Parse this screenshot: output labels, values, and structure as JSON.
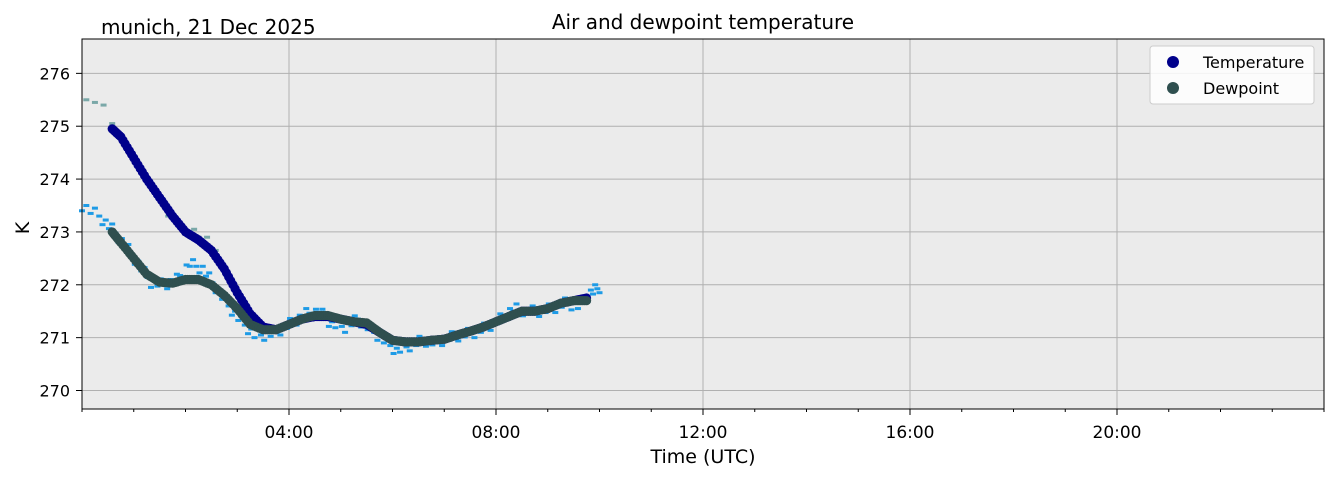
{
  "header": {
    "location_date": "munich, 21 Dec 2025",
    "title": "Air and dewpoint temperature"
  },
  "chart_data": {
    "type": "scatter",
    "title": "Air and dewpoint temperature",
    "xlabel": "Time (UTC)",
    "ylabel": "K",
    "xlim": [
      "00:00",
      "24:00"
    ],
    "ylim": [
      269.65,
      276.65
    ],
    "x_ticks": [
      "04:00",
      "08:00",
      "12:00",
      "16:00",
      "20:00"
    ],
    "y_ticks": [
      270,
      271,
      272,
      273,
      274,
      275,
      276
    ],
    "grid": true,
    "background": "#ebebeb",
    "legend": {
      "placement": "top-right",
      "entries": [
        "Temperature",
        "Dewpoint"
      ]
    },
    "series": [
      {
        "name": "Temperature",
        "color": "#00008b",
        "x": [
          "00:35",
          "00:45",
          "01:00",
          "01:15",
          "01:30",
          "01:45",
          "02:00",
          "02:15",
          "02:30",
          "02:45",
          "03:00",
          "03:15",
          "03:30",
          "03:45",
          "04:00",
          "04:15",
          "04:30",
          "04:45",
          "05:00",
          "05:15",
          "05:30",
          "05:45",
          "06:00",
          "06:15",
          "06:30",
          "06:45",
          "07:00",
          "07:15",
          "07:30",
          "07:45",
          "08:00",
          "08:15",
          "08:30",
          "08:45",
          "09:00",
          "09:15",
          "09:30",
          "09:45"
        ],
        "values": [
          274.95,
          274.8,
          274.4,
          274.0,
          273.65,
          273.3,
          273.0,
          272.85,
          272.65,
          272.3,
          271.85,
          271.45,
          271.2,
          271.15,
          271.25,
          271.35,
          271.4,
          271.4,
          271.35,
          271.3,
          271.25,
          271.1,
          270.95,
          270.92,
          270.92,
          270.95,
          270.97,
          271.05,
          271.12,
          271.2,
          271.3,
          271.4,
          271.5,
          271.5,
          271.55,
          271.65,
          271.7,
          271.75
        ]
      },
      {
        "name": "Dewpoint",
        "color": "#2f4f4f",
        "x": [
          "00:35",
          "00:45",
          "01:00",
          "01:15",
          "01:30",
          "01:45",
          "02:00",
          "02:15",
          "02:30",
          "02:45",
          "03:00",
          "03:15",
          "03:30",
          "03:45",
          "04:00",
          "04:15",
          "04:30",
          "04:45",
          "05:00",
          "05:15",
          "05:30",
          "05:45",
          "06:00",
          "06:15",
          "06:30",
          "06:45",
          "07:00",
          "07:15",
          "07:30",
          "07:45",
          "08:00",
          "08:15",
          "08:30",
          "08:45",
          "09:00",
          "09:15",
          "09:30",
          "09:45"
        ],
        "values": [
          273.0,
          272.8,
          272.5,
          272.2,
          272.05,
          272.03,
          272.1,
          272.1,
          272.0,
          271.8,
          271.55,
          271.25,
          271.15,
          271.15,
          271.25,
          271.35,
          271.42,
          271.42,
          271.35,
          271.3,
          271.28,
          271.1,
          270.95,
          270.92,
          270.92,
          270.95,
          270.97,
          271.05,
          271.12,
          271.2,
          271.3,
          271.4,
          271.5,
          271.5,
          271.55,
          271.65,
          271.7,
          271.7
        ]
      },
      {
        "name": "",
        "color": "#1e9be6",
        "x": [
          "00:00",
          "00:20",
          "00:35",
          "00:50",
          "01:05",
          "01:20",
          "01:35",
          "01:50",
          "02:05",
          "02:20",
          "02:35",
          "02:50",
          "03:05",
          "03:20",
          "03:35",
          "03:50",
          "04:05",
          "04:20",
          "04:35",
          "04:50",
          "05:05",
          "05:20",
          "05:35",
          "05:50",
          "06:05",
          "06:20",
          "06:35",
          "06:50",
          "07:05",
          "07:20",
          "07:35",
          "07:50",
          "08:05",
          "08:20",
          "08:35",
          "08:50",
          "09:05",
          "09:20",
          "09:35",
          "09:50",
          "10:00"
        ],
        "values": [
          273.5,
          273.3,
          273.05,
          272.75,
          272.4,
          272.05,
          272.0,
          272.1,
          272.4,
          272.3,
          271.95,
          271.6,
          271.3,
          271.05,
          271.05,
          271.15,
          271.3,
          271.45,
          271.5,
          271.25,
          271.2,
          271.35,
          271.15,
          270.95,
          270.75,
          270.85,
          270.95,
          270.9,
          271.0,
          271.05,
          271.1,
          271.2,
          271.35,
          271.55,
          271.5,
          271.5,
          271.55,
          271.65,
          271.6,
          271.85,
          271.95
        ]
      },
      {
        "name": "",
        "color": "#7aa8a8",
        "x": [
          "00:05",
          "00:15",
          "00:25",
          "00:35",
          "01:30",
          "01:40",
          "02:10",
          "02:15",
          "02:25",
          "02:35"
        ],
        "values": [
          275.6,
          275.45,
          275.3,
          275.1,
          273.6,
          273.4,
          273.05,
          272.8,
          272.95,
          272.6
        ]
      }
    ]
  }
}
